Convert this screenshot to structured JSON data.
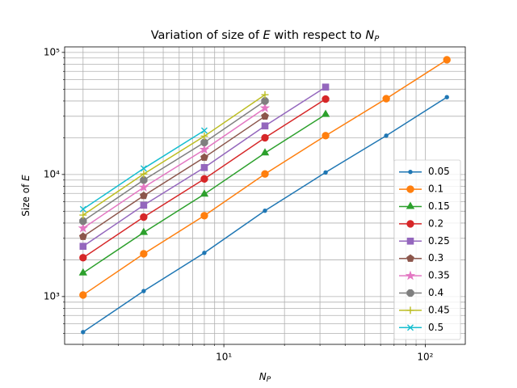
{
  "chart_data": {
    "type": "line",
    "title": [
      "Variation of size of ",
      "E",
      " with respect to ",
      "N",
      "P"
    ],
    "xlabel": [
      "N",
      "P"
    ],
    "ylabel": [
      "Size of ",
      "E"
    ],
    "xscale": "log",
    "yscale": "log",
    "xlim": [
      1.62,
      158
    ],
    "ylim": [
      406,
      111000
    ],
    "xticks": [
      {
        "value": 10,
        "label": "10¹"
      },
      {
        "value": 100,
        "label": "10²"
      }
    ],
    "yticks": [
      {
        "value": 1000,
        "label": "10³"
      },
      {
        "value": 10000,
        "label": "10⁴"
      },
      {
        "value": 100000,
        "label": "10⁵"
      }
    ],
    "xminorticks": [
      2,
      3,
      4,
      5,
      6,
      7,
      8,
      9,
      20,
      30,
      40,
      50,
      60,
      70,
      80,
      90
    ],
    "yminorticks": [
      500,
      600,
      700,
      800,
      900,
      2000,
      3000,
      4000,
      5000,
      6000,
      7000,
      8000,
      9000,
      20000,
      30000,
      40000,
      50000,
      60000,
      70000,
      80000,
      90000
    ],
    "grid": true,
    "legend": "lower right",
    "series": [
      {
        "name": "0.05",
        "color": "#1f77b4",
        "marker": "point",
        "x": [
          2,
          4,
          8,
          16,
          32,
          64,
          128
        ],
        "values": [
          512,
          1110,
          2280,
          5050,
          10400,
          20800,
          43000
        ]
      },
      {
        "name": "0.1",
        "color": "#ff7f0e",
        "marker": "circle",
        "x": [
          2,
          4,
          8,
          16,
          32,
          64,
          128
        ],
        "values": [
          1030,
          2240,
          4600,
          10100,
          20800,
          41800,
          87000
        ]
      },
      {
        "name": "0.15",
        "color": "#2ca02c",
        "marker": "triangle",
        "x": [
          2,
          4,
          8,
          16,
          32
        ],
        "values": [
          1560,
          3350,
          6900,
          15000,
          31000
        ]
      },
      {
        "name": "0.2",
        "color": "#d62728",
        "marker": "circle",
        "x": [
          2,
          4,
          8,
          16,
          32
        ],
        "values": [
          2080,
          4480,
          9200,
          20000,
          41500
        ]
      },
      {
        "name": "0.25",
        "color": "#9467bd",
        "marker": "square",
        "x": [
          2,
          4,
          8,
          16,
          32
        ],
        "values": [
          2580,
          5600,
          11400,
          25000,
          52000
        ]
      },
      {
        "name": "0.3",
        "color": "#8c564b",
        "marker": "pentagon",
        "x": [
          2,
          4,
          8,
          16
        ],
        "values": [
          3100,
          6700,
          13800,
          30000
        ]
      },
      {
        "name": "0.35",
        "color": "#e377c2",
        "marker": "star",
        "x": [
          2,
          4,
          8,
          16
        ],
        "values": [
          3630,
          7850,
          16000,
          35000
        ]
      },
      {
        "name": "0.4",
        "color": "#7f7f7f",
        "marker": "octagon",
        "x": [
          2,
          4,
          8,
          16
        ],
        "values": [
          4150,
          9000,
          18300,
          40000
        ]
      },
      {
        "name": "0.45",
        "color": "#bcbd22",
        "marker": "plus",
        "x": [
          2,
          4,
          8,
          16
        ],
        "values": [
          4650,
          10100,
          20600,
          45000
        ]
      },
      {
        "name": "0.5",
        "color": "#17becf",
        "marker": "x",
        "x": [
          2,
          4,
          8
        ],
        "values": [
          5200,
          11200,
          22900
        ]
      }
    ]
  }
}
